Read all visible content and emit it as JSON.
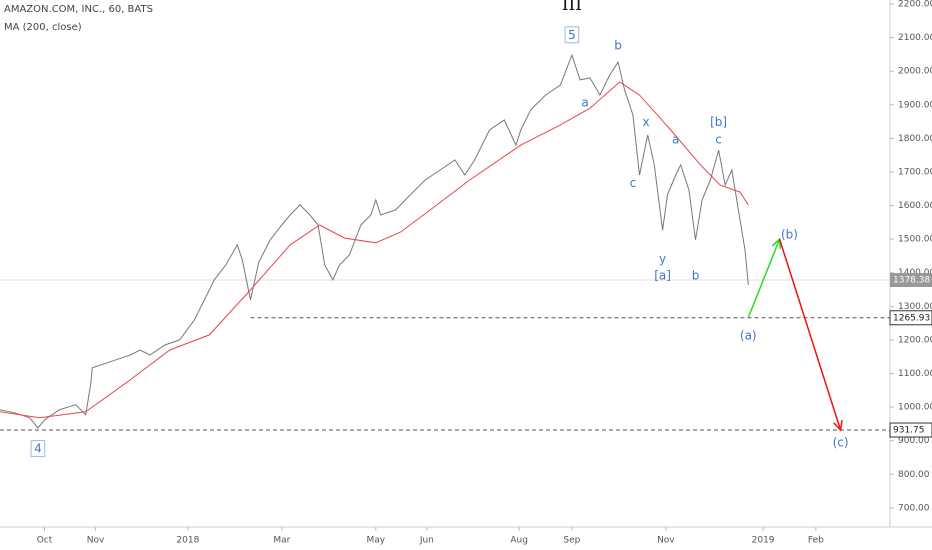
{
  "chart_data": {
    "type": "line",
    "title": "AMAZON.COM, INC., 60, BATS",
    "subtitle": "MA (200, close)",
    "xlim": [
      0,
      540
    ],
    "xticks": [
      {
        "value": 27,
        "label": "Oct"
      },
      {
        "value": 58,
        "label": "Nov"
      },
      {
        "value": 114,
        "label": "2018"
      },
      {
        "value": 171,
        "label": "Mar"
      },
      {
        "value": 228,
        "label": "May"
      },
      {
        "value": 259,
        "label": "Jun"
      },
      {
        "value": 315,
        "label": "Aug"
      },
      {
        "value": 347,
        "label": "Sep"
      },
      {
        "value": 404,
        "label": "Nov"
      },
      {
        "value": 463,
        "label": "2019"
      },
      {
        "value": 495,
        "label": "Feb"
      }
    ],
    "ylim": [
      643,
      2212
    ],
    "yticks": [
      {
        "value": 700,
        "label": "700.00"
      },
      {
        "value": 800,
        "label": "800.00"
      },
      {
        "value": 900,
        "label": "900.00"
      },
      {
        "value": 1000,
        "label": "1000.00"
      },
      {
        "value": 1100,
        "label": "1100.00"
      },
      {
        "value": 1200,
        "label": "1200.00"
      },
      {
        "value": 1300,
        "label": "1300.00"
      },
      {
        "value": 1400,
        "label": "1400.00"
      },
      {
        "value": 1500,
        "label": "1500.00"
      },
      {
        "value": 1600,
        "label": "1600.00"
      },
      {
        "value": 1700,
        "label": "1700.00"
      },
      {
        "value": 1800,
        "label": "1800.00"
      },
      {
        "value": 1900,
        "label": "1900.00"
      },
      {
        "value": 2000,
        "label": "2000.00"
      },
      {
        "value": 2100,
        "label": "2100.00"
      },
      {
        "value": 2200,
        "label": "2200.00"
      }
    ],
    "series": [
      {
        "color": "#777777",
        "x": [
          0,
          9,
          18,
          23,
          27,
          36,
          46,
          52,
          55,
          56,
          67,
          79,
          85,
          91,
          100,
          109,
          118,
          124,
          130,
          137,
          144,
          147,
          152,
          157,
          164,
          171,
          176,
          182,
          188,
          193,
          197,
          202,
          206,
          212,
          219,
          225,
          228,
          231,
          240,
          249,
          258,
          267,
          276,
          282,
          288,
          297,
          306,
          313,
          316,
          322,
          331,
          340,
          347,
          352,
          358,
          364,
          370,
          375,
          379,
          384,
          388,
          393,
          397,
          402,
          405,
          410,
          413,
          418,
          422,
          426,
          431,
          436,
          440,
          444,
          448,
          452,
          454
        ],
        "values": [
          992,
          983,
          968,
          938,
          962,
          992,
          1007,
          977,
          1066,
          1117,
          1135,
          1155,
          1170,
          1155,
          1185,
          1200,
          1260,
          1319,
          1379,
          1423,
          1483,
          1438,
          1319,
          1432,
          1498,
          1542,
          1572,
          1602,
          1572,
          1542,
          1423,
          1379,
          1423,
          1453,
          1542,
          1572,
          1617,
          1572,
          1587,
          1632,
          1676,
          1706,
          1736,
          1691,
          1736,
          1825,
          1855,
          1780,
          1825,
          1885,
          1929,
          1959,
          2048,
          1974,
          1980,
          1929,
          1989,
          2027,
          1944,
          1870,
          1691,
          1810,
          1721,
          1527,
          1632,
          1691,
          1721,
          1647,
          1498,
          1617,
          1676,
          1765,
          1661,
          1706,
          1587,
          1468,
          1364
        ]
      },
      {
        "color": "#e8474c",
        "x": [
          0,
          24,
          52,
          79,
          103,
          127,
          152,
          176,
          194,
          209,
          228,
          243,
          261,
          285,
          316,
          340,
          358,
          376,
          388,
          407,
          425,
          437,
          449,
          454
        ],
        "values": [
          986,
          968,
          986,
          1081,
          1170,
          1215,
          1349,
          1483,
          1542,
          1503,
          1489,
          1521,
          1587,
          1676,
          1780,
          1840,
          1890,
          1968,
          1929,
          1825,
          1721,
          1661,
          1640,
          1602
        ]
      }
    ],
    "projections": [
      {
        "color": "#22dd22",
        "x": [
          454,
          473
        ],
        "values": [
          1265.93,
          1500
        ]
      },
      {
        "color": "#ee1111",
        "x": [
          473,
          510
        ],
        "values": [
          1500,
          931.75
        ]
      }
    ],
    "last_price": 1378.38,
    "levels": [
      {
        "value": 1265.93,
        "from": 152
      },
      {
        "value": 931.75,
        "from": 0
      }
    ],
    "annotations": [
      {
        "text": "III",
        "x": 347,
        "y": 2195,
        "color": "#111111",
        "big": true
      },
      {
        "text": "5",
        "x": 347,
        "y": 2107,
        "color": "#3a78c8",
        "boxed": true
      },
      {
        "text": "b",
        "x": 375,
        "y": 2075,
        "color": "#3a78c8"
      },
      {
        "text": "a",
        "x": 355,
        "y": 1905,
        "color": "#3a78c8"
      },
      {
        "text": "x",
        "x": 392,
        "y": 1847,
        "color": "#3a78c8"
      },
      {
        "text": "c",
        "x": 384,
        "y": 1665,
        "color": "#3a78c8"
      },
      {
        "text": "a",
        "x": 410,
        "y": 1795,
        "color": "#3a78c8"
      },
      {
        "text": "[b]",
        "x": 436,
        "y": 1847,
        "color": "#3a78c8"
      },
      {
        "text": "c",
        "x": 436,
        "y": 1795,
        "color": "#3a78c8"
      },
      {
        "text": "y",
        "x": 402,
        "y": 1440,
        "color": "#3a78c8"
      },
      {
        "text": "[a]",
        "x": 402,
        "y": 1390,
        "color": "#3a78c8"
      },
      {
        "text": "b",
        "x": 422,
        "y": 1390,
        "color": "#3a78c8"
      },
      {
        "text": "(b)",
        "x": 479,
        "y": 1512,
        "color": "#3a78c8"
      },
      {
        "text": "(a)",
        "x": 454,
        "y": 1212,
        "color": "#3a78c8"
      },
      {
        "text": "(c)",
        "x": 510,
        "y": 893,
        "color": "#3a78c8"
      },
      {
        "text": "4",
        "x": 23,
        "y": 875,
        "color": "#3a78c8",
        "boxed": true
      }
    ]
  }
}
